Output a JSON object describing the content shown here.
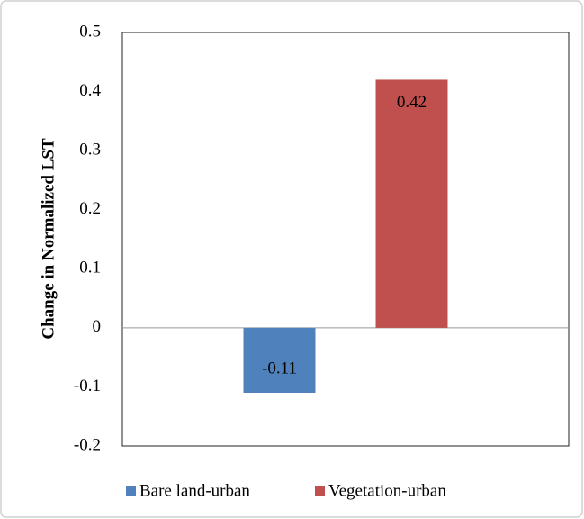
{
  "chart_data": {
    "type": "bar",
    "y_label": "Change in Normalized LST",
    "categories": [
      null
    ],
    "series": [
      {
        "name": "Bare land-urban",
        "color": "#4f81bd",
        "values": [
          -0.11
        ]
      },
      {
        "name": "Vegetation-urban",
        "color": "#c0504d",
        "values": [
          0.42
        ]
      }
    ],
    "ylim": [
      -0.2,
      0.5
    ],
    "yticks": [
      -0.2,
      -0.1,
      0,
      0.1,
      0.2,
      0.3,
      0.4,
      0.5
    ],
    "grid": false,
    "data_labels": true,
    "legend": "bottom"
  }
}
